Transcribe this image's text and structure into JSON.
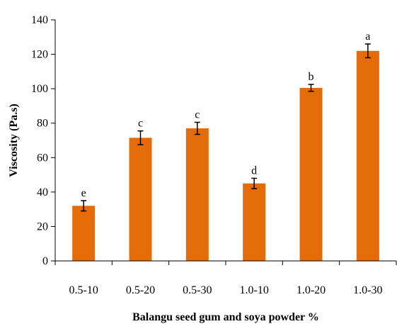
{
  "chart_data": {
    "type": "bar",
    "title": "",
    "xlabel": "Balangu seed gum and soya powder %",
    "ylabel": "Viscosity (Pa.s)",
    "categories": [
      "0.5-10",
      "0.5-20",
      "0.5-30",
      "1.0-10",
      "1.0-20",
      "1.0-30"
    ],
    "values": [
      32,
      71.5,
      77,
      45,
      100.5,
      122
    ],
    "errors": [
      3,
      4,
      3.5,
      3,
      2,
      4
    ],
    "labels": [
      "e",
      "c",
      "c",
      "d",
      "b",
      "a"
    ],
    "ylim": [
      0,
      140
    ],
    "yticks": [
      0,
      20,
      40,
      60,
      80,
      100,
      120,
      140
    ],
    "bar_color": "#E36C09",
    "grid": false,
    "legend": "none"
  }
}
